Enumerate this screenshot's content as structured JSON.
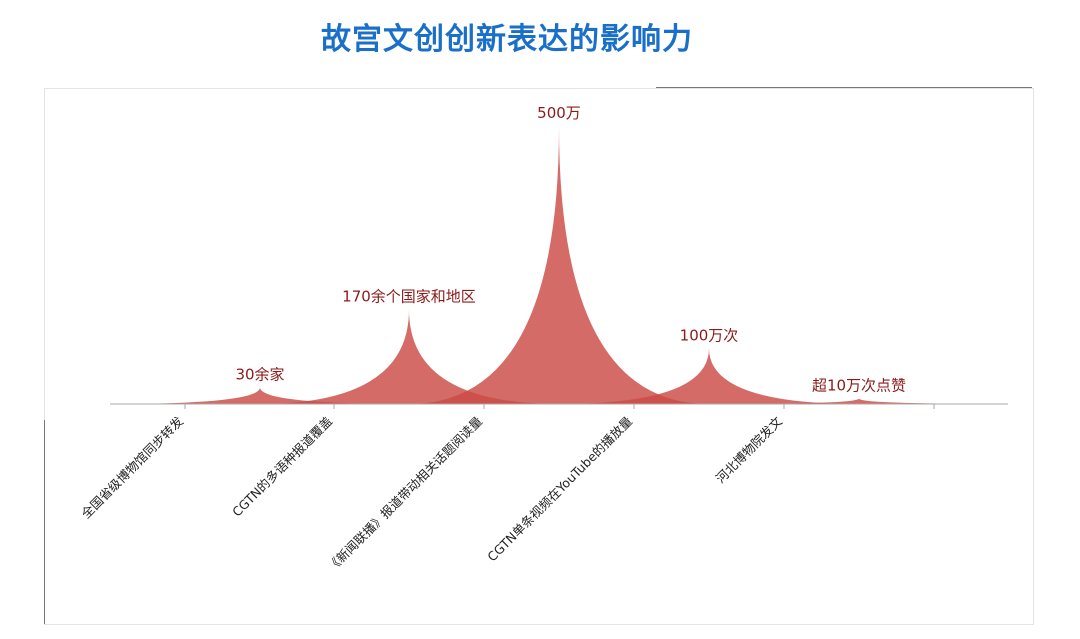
{
  "title": "故宫文创创新表达的影响力",
  "chart_data": {
    "type": "area",
    "categories": [
      "全国省级博物馆同步转发",
      "CGTN的多语种报道覆盖",
      "《新闻联播》报道带动相关话题阅读量",
      "CGTN单条视频在YouTube的播放量",
      "河北博物院发文"
    ],
    "data_labels": [
      "30余家",
      "170余个国家和地区",
      "500万",
      "100万次",
      "超10万次点赞"
    ],
    "values": [
      30,
      170,
      500,
      100,
      10
    ],
    "colors": {
      "fill": "#cc4a45",
      "label": "#8b1a1a",
      "title": "#1a6fc9",
      "axis": "#aaaaaa"
    }
  }
}
